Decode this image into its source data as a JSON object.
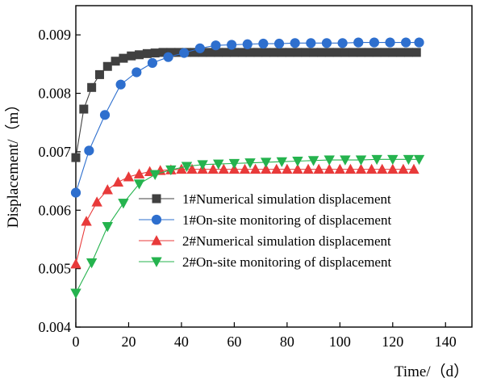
{
  "chart_data": {
    "type": "line",
    "title": "",
    "xlabel": "Time/（d）",
    "ylabel": "Displacement/（m）",
    "xlim": [
      0,
      150
    ],
    "ylim": [
      0.004,
      0.0095
    ],
    "x_ticks": [
      "0",
      "20",
      "40",
      "60",
      "80",
      "100",
      "120",
      "140"
    ],
    "y_ticks": [
      "0.004",
      "0.005",
      "0.006",
      "0.007",
      "0.008",
      "0.009"
    ],
    "grid": false,
    "legend_position": "center-right",
    "series": [
      {
        "name": "1#Numerical simulation displacement",
        "color": "#404040",
        "marker": "square",
        "x": [
          0,
          3,
          6,
          9,
          12,
          15,
          18,
          21,
          24,
          27,
          30,
          33,
          36,
          39,
          42,
          45,
          48,
          51,
          54,
          57,
          60,
          63,
          66,
          69,
          72,
          75,
          78,
          81,
          84,
          87,
          90,
          93,
          96,
          99,
          102,
          105,
          108,
          111,
          114,
          117,
          120,
          123,
          126,
          129
        ],
        "values": [
          0.0069,
          0.00773,
          0.0081,
          0.00832,
          0.00846,
          0.00855,
          0.0086,
          0.00864,
          0.00866,
          0.00868,
          0.00869,
          0.0087,
          0.0087,
          0.0087,
          0.0087,
          0.0087,
          0.0087,
          0.0087,
          0.0087,
          0.0087,
          0.0087,
          0.0087,
          0.0087,
          0.0087,
          0.0087,
          0.0087,
          0.0087,
          0.0087,
          0.0087,
          0.0087,
          0.0087,
          0.0087,
          0.0087,
          0.0087,
          0.0087,
          0.0087,
          0.0087,
          0.0087,
          0.0087,
          0.0087,
          0.0087,
          0.0087,
          0.0087,
          0.0087
        ]
      },
      {
        "name": "1#On-site monitoring of displacement",
        "color": "#2e6fce",
        "marker": "circle",
        "x": [
          0,
          5,
          11,
          17,
          23,
          29,
          35,
          41,
          47,
          53,
          59,
          65,
          71,
          77,
          83,
          89,
          95,
          101,
          107,
          113,
          119,
          125,
          130
        ],
        "values": [
          0.0063,
          0.00702,
          0.00763,
          0.00815,
          0.00836,
          0.00852,
          0.00862,
          0.00869,
          0.00877,
          0.00882,
          0.00883,
          0.00884,
          0.00885,
          0.00885,
          0.00886,
          0.00886,
          0.00886,
          0.00886,
          0.00887,
          0.00887,
          0.00887,
          0.00887,
          0.00887
        ]
      },
      {
        "name": "2#Numerical simulation displacement",
        "color": "#e83a3a",
        "marker": "triangle-up",
        "x": [
          0,
          4,
          8,
          12,
          16,
          20,
          24,
          28,
          32,
          36,
          40,
          44,
          48,
          52,
          56,
          60,
          64,
          68,
          72,
          76,
          80,
          84,
          88,
          92,
          96,
          100,
          104,
          108,
          112,
          116,
          120,
          124,
          128
        ],
        "values": [
          0.00508,
          0.00581,
          0.00614,
          0.00635,
          0.00648,
          0.00657,
          0.00662,
          0.00666,
          0.00668,
          0.00669,
          0.0067,
          0.0067,
          0.0067,
          0.0067,
          0.0067,
          0.0067,
          0.0067,
          0.0067,
          0.0067,
          0.0067,
          0.0067,
          0.0067,
          0.0067,
          0.0067,
          0.0067,
          0.0067,
          0.0067,
          0.0067,
          0.0067,
          0.0067,
          0.0067,
          0.0067,
          0.0067
        ]
      },
      {
        "name": "2#On-site monitoring of displacement",
        "color": "#25b34e",
        "marker": "triangle-down",
        "x": [
          0,
          6,
          12,
          18,
          24,
          30,
          36,
          42,
          48,
          54,
          60,
          66,
          72,
          78,
          84,
          90,
          96,
          102,
          108,
          114,
          120,
          126,
          130
        ],
        "values": [
          0.00458,
          0.0051,
          0.00572,
          0.00612,
          0.00645,
          0.00661,
          0.00669,
          0.00675,
          0.00678,
          0.00679,
          0.0068,
          0.00681,
          0.00682,
          0.00683,
          0.00684,
          0.00685,
          0.00686,
          0.00686,
          0.00686,
          0.00687,
          0.00687,
          0.00687,
          0.00687
        ]
      }
    ]
  }
}
